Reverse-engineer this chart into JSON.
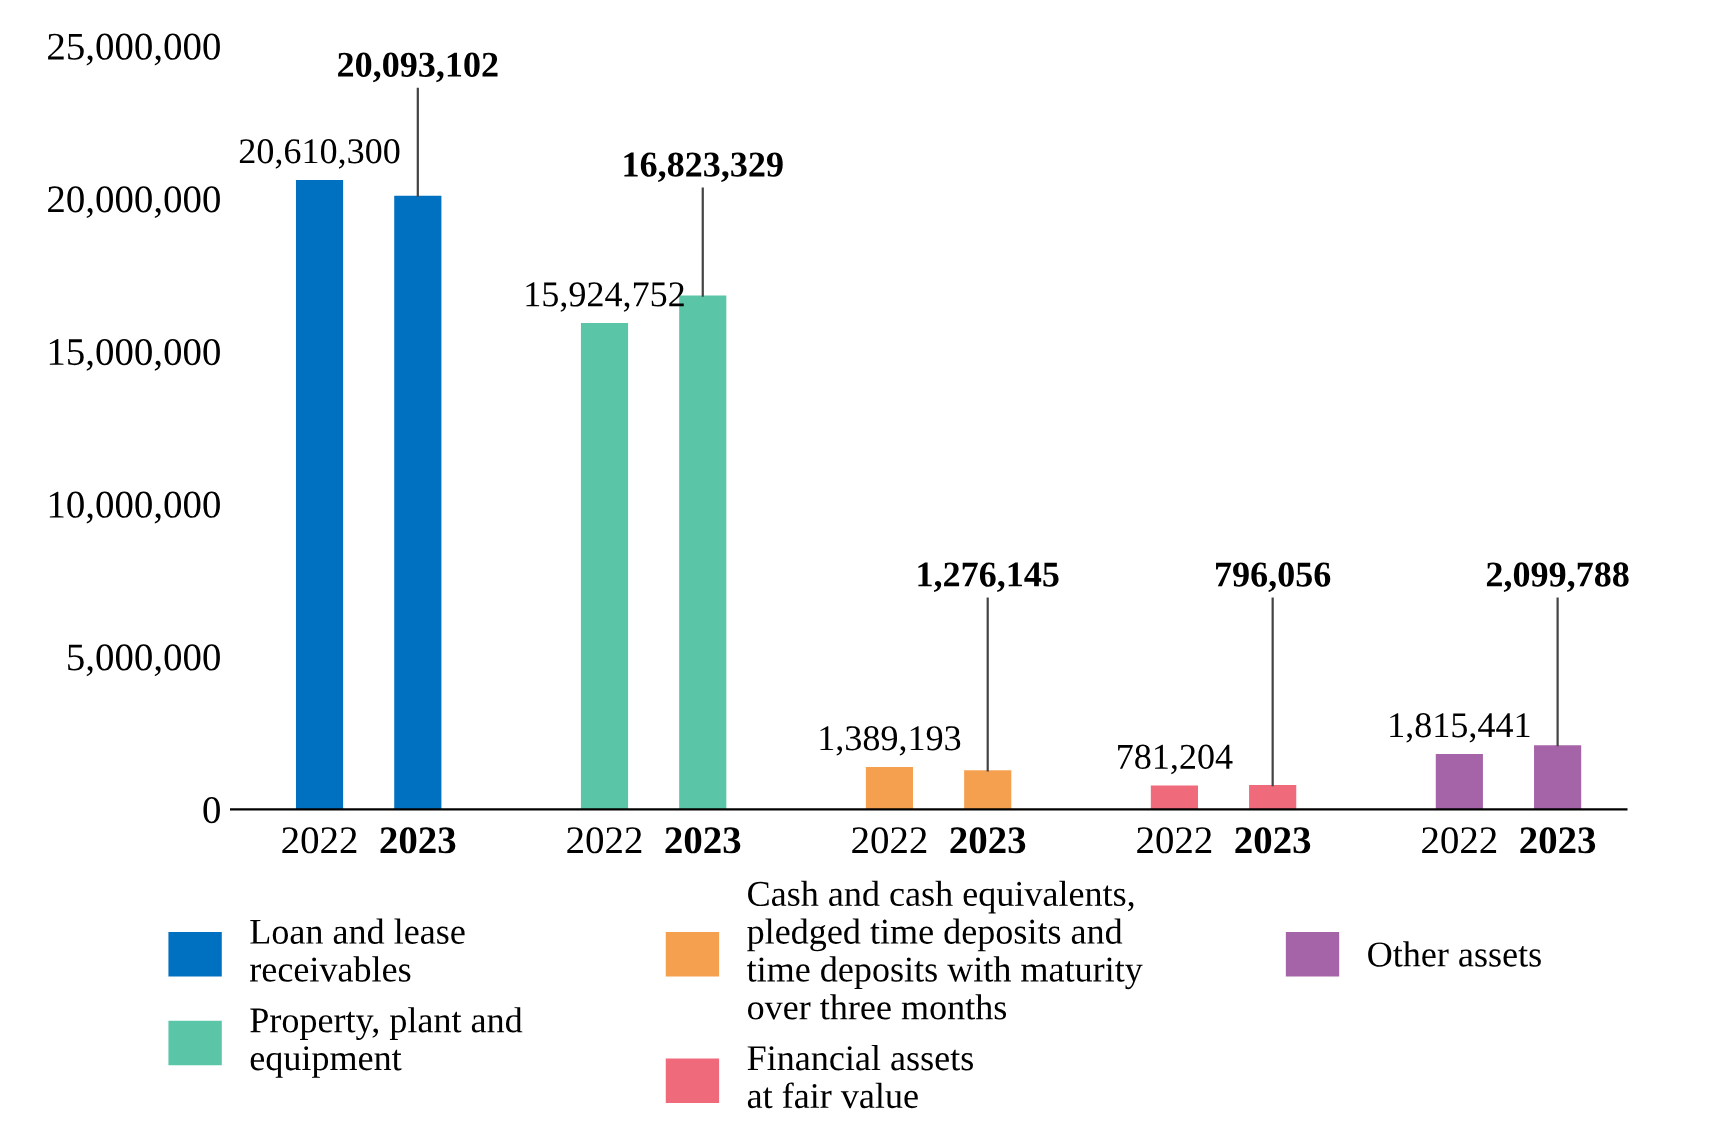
{
  "chart_data": {
    "type": "bar",
    "categories": [
      "2022",
      "2023",
      "2022",
      "2023",
      "2022",
      "2023",
      "2022",
      "2023",
      "2022",
      "2023"
    ],
    "series": [
      {
        "name": "Loan and lease\nreceivables",
        "color": "#0070c0",
        "values": [
          20610300,
          20093102,
          null,
          null,
          null,
          null,
          null,
          null,
          null,
          null
        ],
        "value_labels": [
          "20,610,300",
          "20,093,102",
          null,
          null,
          null,
          null,
          null,
          null,
          null,
          null
        ]
      },
      {
        "name": "Property, plant and\nequipment",
        "color": "#5bc5a7",
        "values": [
          null,
          null,
          15924752,
          16823329,
          null,
          null,
          null,
          null,
          null,
          null
        ],
        "value_labels": [
          null,
          null,
          "15,924,752",
          "16,823,329",
          null,
          null,
          null,
          null,
          null,
          null
        ]
      },
      {
        "name": "Cash and cash equivalents,\npledged time deposits and\ntime deposits with maturity\nover three months",
        "color": "#f5a04f",
        "values": [
          null,
          null,
          null,
          null,
          1389193,
          1276145,
          null,
          null,
          null,
          null
        ],
        "value_labels": [
          null,
          null,
          null,
          null,
          "1,389,193",
          "1,276,145",
          null,
          null,
          null,
          null
        ]
      },
      {
        "name": "Financial assets\nat fair value",
        "color": "#ef6a7b",
        "values": [
          null,
          null,
          null,
          null,
          null,
          null,
          781204,
          796056,
          null,
          null
        ],
        "value_labels": [
          null,
          null,
          null,
          null,
          null,
          null,
          "781,204",
          "796,056",
          null,
          null
        ]
      },
      {
        "name": "Other assets",
        "color": "#a664a8",
        "values": [
          null,
          null,
          null,
          null,
          null,
          null,
          null,
          null,
          1815441,
          2099788
        ],
        "value_labels": [
          null,
          null,
          null,
          null,
          null,
          null,
          null,
          null,
          "1,815,441",
          "2,099,788"
        ]
      }
    ],
    "ylim": [
      0,
      25000000
    ],
    "yticks": [
      {
        "value": 0,
        "label": "0"
      },
      {
        "value": 5000000,
        "label": "5,000,000"
      },
      {
        "value": 10000000,
        "label": "10,000,000"
      },
      {
        "value": 15000000,
        "label": "15,000,000"
      },
      {
        "value": 20000000,
        "label": "20,000,000"
      },
      {
        "value": 25000000,
        "label": "25,000,000"
      }
    ],
    "grid": false,
    "legend": "bottom"
  }
}
